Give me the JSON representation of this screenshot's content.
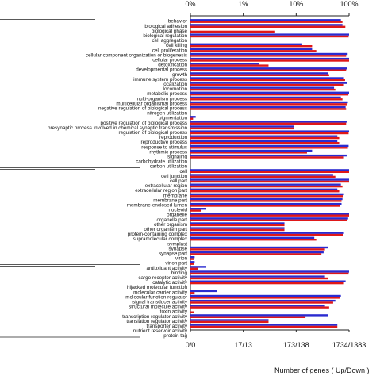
{
  "chart_data": {
    "type": "bar",
    "orientation": "horizontal",
    "x_scale": "log-percent",
    "top_ticks": [
      "0%",
      "1%",
      "10%",
      "100%"
    ],
    "bottom_ticks": [
      "0/0",
      "17/13",
      "173/138",
      "1734/1383"
    ],
    "xlabel": "Number of genes ( Up/Down )",
    "colors": {
      "up": "#2b2bd0",
      "down": "#e01818"
    },
    "series": [
      {
        "name": "Up"
      },
      {
        "name": "Down"
      }
    ],
    "groups": [
      {
        "name": "",
        "categories": [
          {
            "label": "behavior",
            "up": 70,
            "down": 75
          },
          {
            "label": "biological adhesion",
            "up": 75,
            "down": 85
          },
          {
            "label": "biological phase",
            "up": 0,
            "down": 4
          },
          {
            "label": "biological regulation",
            "up": 100,
            "down": 98
          },
          {
            "label": "cell aggregation",
            "up": 0,
            "down": 0
          },
          {
            "label": "cell killing",
            "up": 13,
            "down": 20
          },
          {
            "label": "cell proliferation",
            "up": 20,
            "down": 24
          },
          {
            "label": "cellular component organization or biogenesis",
            "up": 94,
            "down": 88
          },
          {
            "label": "cellular process",
            "up": 100,
            "down": 100
          },
          {
            "label": "detoxification",
            "up": 2,
            "down": 3
          },
          {
            "label": "developmental process",
            "up": 92,
            "down": 88
          },
          {
            "label": "growth",
            "up": 40,
            "down": 42
          },
          {
            "label": "immune system process",
            "up": 80,
            "down": 84
          },
          {
            "label": "localization",
            "up": 92,
            "down": 80
          },
          {
            "label": "locomotion",
            "up": 52,
            "down": 55
          },
          {
            "label": "metabolic process",
            "up": 100,
            "down": 97
          },
          {
            "label": "multi-organism process",
            "up": 70,
            "down": 75
          },
          {
            "label": "multicellular organismal process",
            "up": 95,
            "down": 90
          },
          {
            "label": "negative regulation of biological process",
            "up": 86,
            "down": 88
          },
          {
            "label": "nitrogen utilization",
            "up": 0,
            "down": 0
          },
          {
            "label": "pigmentation",
            "up": 0.1,
            "down": 0.05
          },
          {
            "label": "positive regulation of biological process",
            "up": 90,
            "down": 88
          },
          {
            "label": "presynaptic process involved in chemical synaptic transmission",
            "up": 9,
            "down": 9
          },
          {
            "label": "regulation of biological process",
            "up": 100,
            "down": 98
          },
          {
            "label": "reproduction",
            "up": 60,
            "down": 65
          },
          {
            "label": "reproductive process",
            "up": 60,
            "down": 65
          },
          {
            "label": "response to stimulus",
            "up": 98,
            "down": 95
          },
          {
            "label": "rhythmic process",
            "up": 20,
            "down": 16
          },
          {
            "label": "signaling",
            "up": 90,
            "down": 80
          },
          {
            "label": "carbohydrate utilization",
            "up": 0,
            "down": 0
          },
          {
            "label": "carbon utilization",
            "up": 0,
            "down": 0
          }
        ]
      },
      {
        "name": "",
        "categories": [
          {
            "label": "cell",
            "up": 100,
            "down": 100
          },
          {
            "label": "cell junction",
            "up": 50,
            "down": 55
          },
          {
            "label": "cell part",
            "up": 100,
            "down": 100
          },
          {
            "label": "extracellular region",
            "up": 70,
            "down": 75
          },
          {
            "label": "extracellular region part",
            "up": 60,
            "down": 65
          },
          {
            "label": "membrane",
            "up": 80,
            "down": 76
          },
          {
            "label": "membrane part",
            "up": 75,
            "down": 72
          },
          {
            "label": "membrane-enclosed lumen",
            "up": 72,
            "down": 68
          },
          {
            "label": "nucleoid",
            "up": 0.3,
            "down": 0.2
          },
          {
            "label": "organelle",
            "up": 100,
            "down": 100
          },
          {
            "label": "organelle part",
            "up": 96,
            "down": 92
          },
          {
            "label": "other organism",
            "up": 6,
            "down": 6
          },
          {
            "label": "other organism part",
            "up": 6,
            "down": 6
          },
          {
            "label": "protein-containing complex",
            "up": 80,
            "down": 76
          },
          {
            "label": "supramolecular complex",
            "up": 22,
            "down": 24
          },
          {
            "label": "symplast",
            "up": 0,
            "down": 0
          },
          {
            "label": "synapse",
            "up": 40,
            "down": 35
          },
          {
            "label": "synapse part",
            "up": 33,
            "down": 30
          },
          {
            "label": "virion",
            "up": 0.08,
            "down": 0.06
          },
          {
            "label": "virion part",
            "up": 0.08,
            "down": 0.06
          }
        ]
      },
      {
        "name": "",
        "categories": [
          {
            "label": "antioxidant activity",
            "up": 0.3,
            "down": 0.15
          },
          {
            "label": "binding",
            "up": 100,
            "down": 98
          },
          {
            "label": "cargo receptor activity",
            "up": 35,
            "down": 40
          },
          {
            "label": "catalytic activity",
            "up": 86,
            "down": 80
          },
          {
            "label": "hijacked molecular function",
            "up": 0,
            "down": 0
          },
          {
            "label": "molecular carrier activity",
            "up": 0.5,
            "down": 0.08
          },
          {
            "label": "molecular function regulator",
            "up": 70,
            "down": 66
          },
          {
            "label": "signal transducer activity",
            "up": 55,
            "down": 50
          },
          {
            "label": "structural molecule activity",
            "up": 35,
            "down": 42
          },
          {
            "label": "toxin activity",
            "up": 0,
            "down": 0.06
          },
          {
            "label": "transcription regulator activity",
            "up": 40,
            "down": 15
          },
          {
            "label": "translation regulator activity",
            "up": 3,
            "down": 3
          },
          {
            "label": "transporter activity",
            "up": 60,
            "down": 60
          },
          {
            "label": "nutrient reservoir activity",
            "up": 0,
            "down": 0
          },
          {
            "label": "protein tag",
            "up": 0,
            "down": 0
          }
        ]
      }
    ]
  }
}
